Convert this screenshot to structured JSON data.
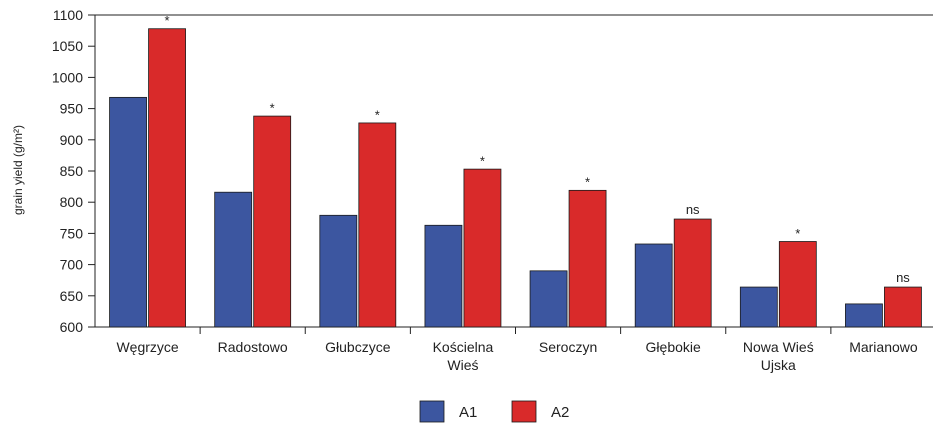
{
  "chart_data": {
    "type": "bar",
    "ylabel": "grain yield (g/m²)",
    "ylim": [
      600,
      1100
    ],
    "yticks": [
      600,
      650,
      700,
      750,
      800,
      850,
      900,
      950,
      1000,
      1050,
      1100
    ],
    "grid": false,
    "legend_position": "bottom",
    "categories": [
      [
        "Węgrzyce"
      ],
      [
        "Radostowo"
      ],
      [
        "Głubczyce"
      ],
      [
        "Kościelna",
        "Wieś"
      ],
      [
        "Seroczyn"
      ],
      [
        "Głębokie"
      ],
      [
        "Nowa Wieś",
        "Ujska"
      ],
      [
        "Marianowo"
      ]
    ],
    "series": [
      {
        "name": "A1",
        "color": "#3c56a0",
        "values": [
          968,
          816,
          779,
          763,
          690,
          733,
          664,
          637
        ]
      },
      {
        "name": "A2",
        "color": "#d92a2a",
        "values": [
          1078,
          938,
          927,
          853,
          819,
          773,
          737,
          664
        ]
      }
    ],
    "annotations": [
      "*",
      "*",
      "*",
      "*",
      "*",
      "ns",
      "*",
      "ns"
    ]
  }
}
